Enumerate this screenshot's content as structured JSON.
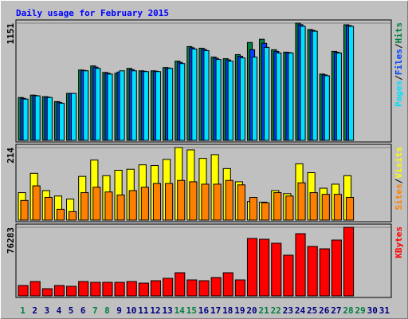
{
  "chart_data": {
    "title": "Daily usage for February 2015",
    "categories": [
      "1",
      "2",
      "3",
      "4",
      "5",
      "6",
      "7",
      "8",
      "9",
      "10",
      "11",
      "12",
      "13",
      "14",
      "15",
      "16",
      "17",
      "18",
      "19",
      "20",
      "21",
      "22",
      "23",
      "24",
      "25",
      "26",
      "27",
      "28",
      "29",
      "30",
      "31"
    ],
    "category_colors": [
      "#008040",
      "#000080",
      "#000080",
      "#000080",
      "#000080",
      "#000080",
      "#008040",
      "#008040",
      "#000080",
      "#000080",
      "#000080",
      "#000080",
      "#000080",
      "#008040",
      "#008040",
      "#000080",
      "#000080",
      "#000080",
      "#000080",
      "#000080",
      "#008040",
      "#008040",
      "#000080",
      "#000080",
      "#000080",
      "#000080",
      "#000080",
      "#008040",
      "#008040",
      "#000080",
      "#000080"
    ],
    "legend_separator": "/",
    "panels": [
      {
        "type": "bar",
        "ylim": [
          0,
          1151
        ],
        "yticks": [
          1151
        ],
        "series": [
          {
            "name": "Hits",
            "color": "#008040",
            "values": [
              421,
              445,
              429,
              381,
              461,
              691,
              731,
              667,
              659,
              707,
              683,
              683,
              715,
              778,
              921,
              905,
              818,
              802,
              842,
              961,
              993,
              890,
              866,
              1151,
              1088,
              651,
              874,
              1135,
              null,
              null,
              null
            ]
          },
          {
            "name": "Files",
            "color": "#0040FF",
            "values": [
              413,
              441,
              425,
              373,
              461,
              687,
              719,
              659,
              671,
              695,
              679,
              679,
              711,
              766,
              909,
              893,
              806,
              790,
              826,
              890,
              953,
              874,
              862,
              1136,
              1080,
              643,
              866,
              1128,
              null,
              null,
              null
            ]
          },
          {
            "name": "Pages",
            "color": "#00E0FF",
            "values": [
              405,
              437,
              421,
              365,
              461,
              683,
              707,
              651,
              683,
              683,
              675,
              675,
              707,
              754,
              897,
              881,
              794,
              778,
              810,
              818,
              913,
              858,
              858,
              1120,
              1072,
              635,
              858,
              1120,
              null,
              null,
              null
            ]
          }
        ]
      },
      {
        "type": "bar",
        "ylim": [
          0,
          214
        ],
        "yticks": [
          214
        ],
        "series": [
          {
            "name": "Visits",
            "color": "#FFFF00",
            "values": [
              81,
              138,
              87,
              71,
              62,
              129,
              177,
              131,
              147,
              150,
              163,
              161,
              179,
              214,
              207,
              182,
              193,
              152,
              113,
              55,
              53,
              87,
              78,
              166,
              140,
              94,
              106,
              131,
              null,
              null,
              null
            ]
          },
          {
            "name": "Sites",
            "color": "#FF8000",
            "values": [
              58,
              101,
              67,
              32,
              25,
              81,
              97,
              83,
              74,
              87,
              97,
              108,
              108,
              117,
              113,
              106,
              106,
              117,
              104,
              67,
              51,
              81,
              71,
              110,
              81,
              76,
              76,
              67,
              null,
              null,
              null
            ]
          }
        ]
      },
      {
        "type": "bar",
        "ylim": [
          0,
          76283
        ],
        "yticks": [
          76283
        ],
        "series": [
          {
            "name": "KBytes",
            "color": "#FF0000",
            "values": [
              11531,
              15966,
              7983,
              11531,
              10644,
              15966,
              15079,
              15079,
              15079,
              15966,
              14192,
              16853,
              19514,
              25723,
              17740,
              16853,
              20401,
              25723,
              17740,
              63866,
              62979,
              58544,
              45240,
              69187,
              54994,
              52333,
              62090,
              76283,
              null,
              null,
              null
            ]
          }
        ]
      }
    ]
  }
}
